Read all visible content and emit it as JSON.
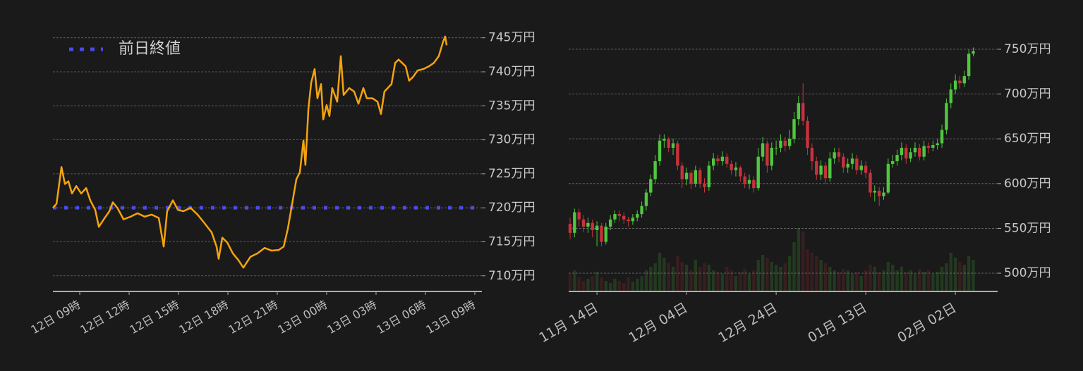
{
  "chart_data": [
    {
      "type": "line",
      "color": "#f5a30f",
      "grid": true,
      "legend": "upper left",
      "x": [
        7.37,
        7.59,
        7.89,
        8.1,
        8.31,
        8.53,
        8.79,
        9.09,
        9.39,
        9.64,
        9.94,
        10.16,
        10.46,
        10.8,
        11.01,
        11.31,
        11.66,
        12.09,
        12.51,
        12.94,
        13.37,
        13.8,
        14.1,
        14.31,
        14.66,
        14.96,
        15.3,
        15.73,
        16.16,
        16.59,
        17.01,
        17.31,
        17.44,
        17.66,
        17.96,
        18.3,
        18.64,
        18.94,
        19.37,
        19.8,
        20.23,
        20.66,
        21.09,
        21.39,
        21.64,
        21.94,
        22.16,
        22.37,
        22.59,
        22.71,
        22.89,
        23.06,
        23.27,
        23.44,
        23.66,
        23.79,
        24.0,
        24.17,
        24.34,
        24.64,
        24.86,
        25.03,
        25.37,
        25.67,
        25.93,
        26.23,
        26.44,
        26.79,
        27.09,
        27.3,
        27.51,
        27.94,
        28.16,
        28.37,
        28.59,
        28.8,
        29.01,
        29.23,
        29.53,
        29.87,
        30.21,
        30.51,
        30.81,
        31.07,
        31.2,
        31.29
      ],
      "values": [
        720.0,
        720.6,
        726.0,
        723.5,
        723.9,
        722.1,
        723.2,
        722.1,
        722.9,
        721.1,
        719.7,
        717.2,
        718.3,
        719.5,
        720.8,
        719.9,
        718.3,
        718.7,
        719.2,
        718.7,
        719.0,
        718.5,
        714.3,
        719.5,
        721.1,
        719.7,
        719.5,
        720.0,
        719.0,
        717.7,
        716.4,
        714.3,
        712.5,
        715.6,
        714.9,
        713.3,
        712.3,
        711.2,
        712.8,
        713.3,
        714.1,
        713.7,
        713.8,
        714.3,
        716.9,
        721.1,
        724.2,
        725.2,
        729.9,
        726.3,
        734.5,
        738.4,
        740.4,
        736.1,
        738.2,
        733.0,
        735.1,
        733.5,
        737.6,
        735.6,
        742.3,
        736.6,
        737.6,
        737.1,
        735.3,
        737.6,
        736.1,
        736.1,
        735.6,
        733.8,
        737.1,
        738.2,
        741.3,
        741.8,
        741.3,
        740.8,
        738.7,
        739.2,
        740.2,
        740.4,
        740.8,
        741.3,
        742.3,
        744.4,
        745.2,
        743.9
      ],
      "reference_line": {
        "name": "前日終値",
        "value": 720,
        "color": "#4b4be6",
        "style": "dotted"
      },
      "xlim": [
        7.37,
        33.43
      ],
      "xticks": [
        {
          "value": 9,
          "label": "12日 09時"
        },
        {
          "value": 12,
          "label": "12日 12時"
        },
        {
          "value": 15,
          "label": "12日 15時"
        },
        {
          "value": 18,
          "label": "12日 18時"
        },
        {
          "value": 21,
          "label": "12日 21時"
        },
        {
          "value": 24,
          "label": "13日 00時"
        },
        {
          "value": 27,
          "label": "13日 03時"
        },
        {
          "value": 30,
          "label": "13日 06時"
        },
        {
          "value": 33,
          "label": "13日 09時"
        }
      ],
      "ylim": [
        707.7,
        745.9
      ],
      "yticks": [
        {
          "value": 710,
          "label": "710万円"
        },
        {
          "value": 715,
          "label": "715万円"
        },
        {
          "value": 720,
          "label": "720万円"
        },
        {
          "value": 725,
          "label": "725万円"
        },
        {
          "value": 730,
          "label": "730万円"
        },
        {
          "value": 735,
          "label": "735万円"
        },
        {
          "value": 740,
          "label": "740万円"
        },
        {
          "value": 745,
          "label": "745万円"
        }
      ]
    },
    {
      "type": "candlestick",
      "up_color": "#4fc83e",
      "down_color": "#c8323c",
      "grid": true,
      "x": [
        "11月 08日",
        "11月 09日",
        "11月 10日",
        "11月 11日",
        "11月 12日",
        "11月 13日",
        "11月 14日",
        "11月 15日",
        "11月 16日",
        "11月 17日",
        "11月 18日",
        "11月 19日",
        "11月 20日",
        "11月 21日",
        "11月 22日",
        "11月 23日",
        "11月 24日",
        "11月 25日",
        "11月 26日",
        "11月 27日",
        "11月 28日",
        "11月 29日",
        "11月 30日",
        "12月 01日",
        "12月 02日",
        "12月 03日",
        "12月 04日",
        "12月 05日",
        "12月 06日",
        "12月 07日",
        "12月 08日",
        "12月 09日",
        "12月 10日",
        "12月 11日",
        "12月 12日",
        "12月 13日",
        "12月 14日",
        "12月 15日",
        "12月 16日",
        "12月 17日",
        "12月 18日",
        "12月 19日",
        "12月 20日",
        "12月 21日",
        "12月 22日",
        "12月 23日",
        "12月 24日",
        "12月 25日",
        "12月 26日",
        "12月 27日",
        "12月 28日",
        "12月 29日",
        "12月 30日",
        "12月 31日",
        "01月 01日",
        "01月 02日",
        "01月 03日",
        "01月 04日",
        "01月 05日",
        "01月 06日",
        "01月 07日",
        "01月 08日",
        "01月 09日",
        "01月 10日",
        "01月 11日",
        "01月 12日",
        "01月 13日",
        "01月 14日",
        "01月 15日",
        "01月 16日",
        "01月 17日",
        "01月 18日",
        "01月 19日",
        "01月 20日",
        "01月 21日",
        "01月 22日",
        "01月 23日",
        "01月 24日",
        "01月 25日",
        "01月 26日",
        "01月 27日",
        "01月 28日",
        "01月 29日",
        "01月 30日",
        "01月 31日",
        "02月 01日",
        "02月 02日",
        "02月 03日",
        "02月 04日",
        "02月 05日",
        "02月 06日"
      ],
      "open": [
        555,
        545,
        568,
        560,
        552,
        556,
        548,
        553,
        535,
        552,
        560,
        566,
        564,
        560,
        558,
        562,
        566,
        575,
        590,
        605,
        625,
        648,
        650,
        640,
        645,
        620,
        605,
        612,
        600,
        615,
        600,
        596,
        620,
        628,
        625,
        630,
        622,
        615,
        618,
        608,
        600,
        604,
        595,
        630,
        645,
        620,
        640,
        640,
        648,
        642,
        650,
        672,
        690,
        670,
        640,
        625,
        610,
        620,
        606,
        628,
        635,
        630,
        618,
        622,
        628,
        615,
        620,
        612,
        590,
        592,
        586,
        590,
        622,
        625,
        632,
        640,
        628,
        635,
        640,
        630,
        642,
        640,
        643,
        645,
        660,
        690,
        705,
        715,
        712,
        720,
        745
      ],
      "high": [
        562,
        572,
        572,
        565,
        562,
        560,
        558,
        556,
        556,
        565,
        570,
        570,
        568,
        563,
        566,
        570,
        580,
        594,
        610,
        632,
        655,
        655,
        652,
        650,
        648,
        624,
        618,
        615,
        620,
        618,
        606,
        625,
        634,
        632,
        636,
        634,
        626,
        624,
        620,
        612,
        610,
        608,
        640,
        652,
        648,
        646,
        648,
        655,
        652,
        660,
        680,
        698,
        712,
        675,
        645,
        630,
        626,
        624,
        635,
        640,
        640,
        634,
        628,
        634,
        632,
        626,
        625,
        616,
        598,
        596,
        596,
        628,
        632,
        638,
        646,
        644,
        640,
        646,
        644,
        648,
        646,
        648,
        650,
        666,
        695,
        712,
        722,
        720,
        726,
        750,
        752
      ],
      "low": [
        538,
        540,
        552,
        546,
        545,
        540,
        530,
        530,
        532,
        548,
        556,
        558,
        555,
        552,
        554,
        558,
        562,
        570,
        586,
        600,
        620,
        640,
        635,
        632,
        615,
        595,
        598,
        594,
        596,
        595,
        590,
        592,
        615,
        620,
        620,
        618,
        610,
        608,
        602,
        595,
        594,
        590,
        592,
        625,
        612,
        615,
        632,
        635,
        636,
        638,
        645,
        665,
        665,
        632,
        615,
        604,
        604,
        600,
        602,
        622,
        624,
        612,
        612,
        616,
        610,
        610,
        606,
        585,
        580,
        575,
        582,
        588,
        618,
        620,
        626,
        622,
        624,
        630,
        626,
        626,
        634,
        636,
        638,
        640,
        655,
        684,
        700,
        706,
        708,
        716,
        742
      ],
      "close": [
        545,
        568,
        560,
        552,
        556,
        548,
        553,
        535,
        552,
        560,
        566,
        564,
        560,
        558,
        562,
        566,
        575,
        590,
        605,
        625,
        648,
        650,
        640,
        645,
        620,
        605,
        612,
        600,
        615,
        600,
        596,
        620,
        628,
        625,
        630,
        622,
        615,
        618,
        608,
        600,
        604,
        595,
        630,
        645,
        620,
        640,
        640,
        648,
        642,
        650,
        672,
        690,
        670,
        640,
        625,
        610,
        620,
        606,
        628,
        635,
        630,
        618,
        622,
        628,
        615,
        620,
        612,
        590,
        592,
        586,
        590,
        622,
        625,
        632,
        640,
        628,
        635,
        640,
        630,
        642,
        640,
        643,
        645,
        660,
        690,
        705,
        715,
        712,
        720,
        745,
        748
      ],
      "volume": [
        25,
        30,
        20,
        15,
        18,
        22,
        28,
        20,
        15,
        12,
        18,
        15,
        12,
        20,
        14,
        18,
        22,
        30,
        35,
        40,
        55,
        48,
        40,
        35,
        50,
        42,
        38,
        30,
        45,
        35,
        40,
        38,
        30,
        28,
        25,
        35,
        30,
        22,
        28,
        32,
        25,
        30,
        45,
        52,
        48,
        42,
        38,
        35,
        40,
        50,
        70,
        90,
        85,
        60,
        55,
        50,
        45,
        40,
        35,
        30,
        28,
        32,
        30,
        25,
        28,
        22,
        30,
        38,
        35,
        28,
        30,
        42,
        38,
        30,
        35,
        28,
        30,
        25,
        32,
        28,
        30,
        25,
        28,
        35,
        40,
        55,
        48,
        42,
        38,
        50,
        45
      ],
      "xticks": [
        "11月 14日",
        "12月 04日",
        "12月 24日",
        "01月 13日",
        "02月 02日"
      ],
      "ylim": [
        479.6,
        759.4
      ],
      "yticks": [
        {
          "value": 500,
          "label": "500万円"
        },
        {
          "value": 550,
          "label": "550万円"
        },
        {
          "value": 600,
          "label": "600万円"
        },
        {
          "value": 650,
          "label": "650万円"
        },
        {
          "value": 700,
          "label": "700万円"
        },
        {
          "value": 750,
          "label": "750万円"
        }
      ]
    }
  ]
}
